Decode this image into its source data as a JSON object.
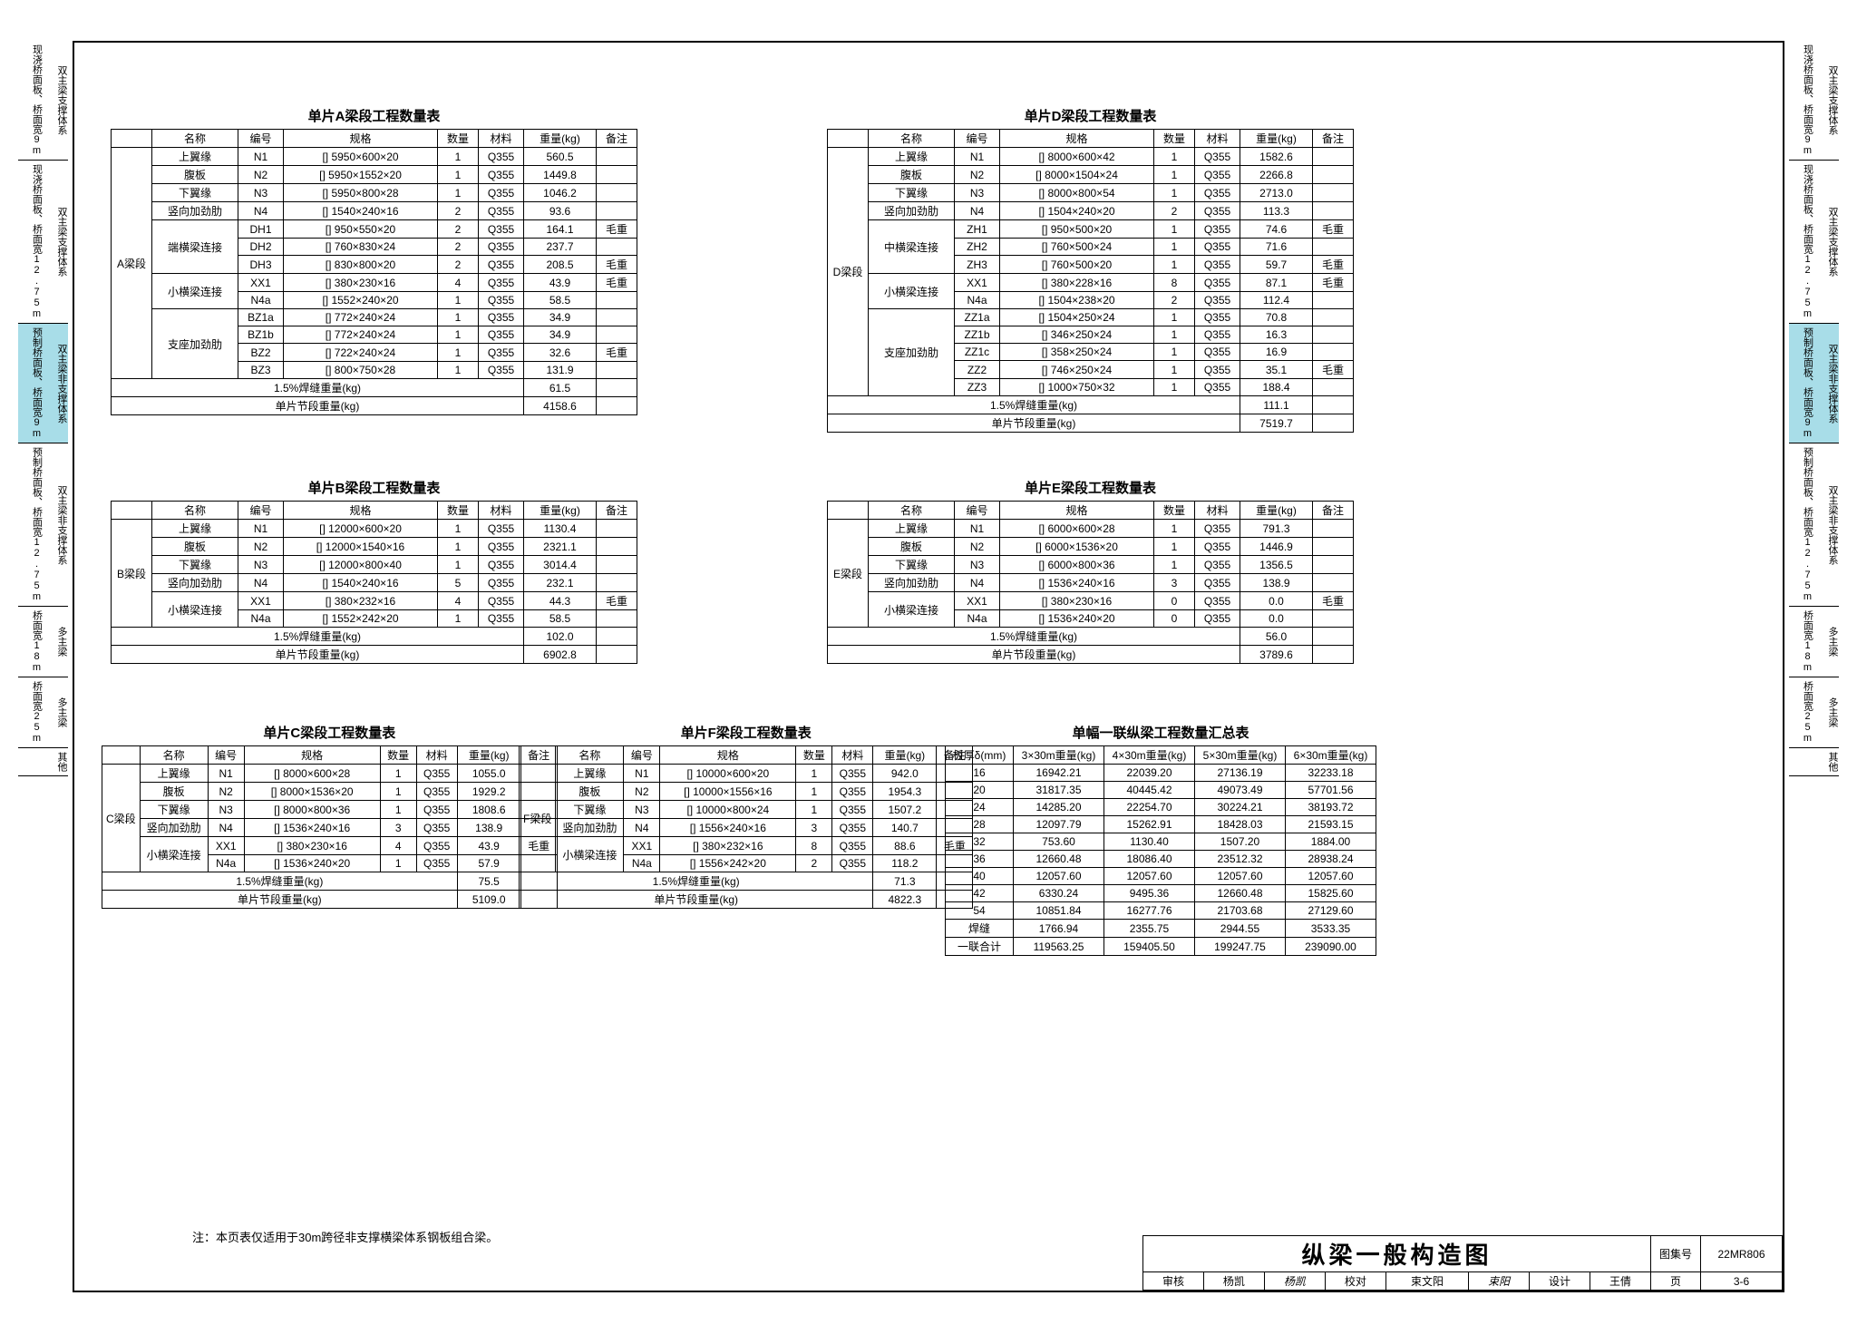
{
  "side_tabs": [
    {
      "main": "现浇桥面板、桥面宽9m",
      "sub": "双主梁支撑体系",
      "hl": false
    },
    {
      "main": "现浇桥面板、桥面宽12.75m",
      "sub": "双主梁支撑体系",
      "hl": false
    },
    {
      "main": "预制桥面板、桥面宽9m",
      "sub": "双主梁非支撑体系",
      "hl": true
    },
    {
      "main": "预制桥面板、桥面宽12.75m",
      "sub": "双主梁非支撑体系",
      "hl": false
    },
    {
      "main": "桥面宽18m",
      "sub": "多主梁",
      "hl": false
    },
    {
      "main": "桥面宽25m",
      "sub": "多主梁",
      "hl": false
    },
    {
      "main": "其他",
      "sub": "",
      "hl": false
    }
  ],
  "headers": [
    "名称",
    "编号",
    "规格",
    "数量",
    "材料",
    "重量(kg)",
    "备注"
  ],
  "tableA": {
    "title": "单片A梁段工程数量表",
    "segment": "A梁段",
    "groups": [
      {
        "name": "上翼缘",
        "rows": [
          [
            "N1",
            "[] 5950×600×20",
            "1",
            "Q355",
            "560.5",
            ""
          ]
        ]
      },
      {
        "name": "腹板",
        "rows": [
          [
            "N2",
            "[] 5950×1552×20",
            "1",
            "Q355",
            "1449.8",
            ""
          ]
        ]
      },
      {
        "name": "下翼缘",
        "rows": [
          [
            "N3",
            "[] 5950×800×28",
            "1",
            "Q355",
            "1046.2",
            ""
          ]
        ]
      },
      {
        "name": "竖向加劲肋",
        "rows": [
          [
            "N4",
            "[] 1540×240×16",
            "2",
            "Q355",
            "93.6",
            ""
          ]
        ]
      },
      {
        "name": "端横梁连接",
        "rows": [
          [
            "DH1",
            "[] 950×550×20",
            "2",
            "Q355",
            "164.1",
            "毛重"
          ],
          [
            "DH2",
            "[] 760×830×24",
            "2",
            "Q355",
            "237.7",
            ""
          ],
          [
            "DH3",
            "[] 830×800×20",
            "2",
            "Q355",
            "208.5",
            "毛重"
          ]
        ]
      },
      {
        "name": "小横梁连接",
        "rows": [
          [
            "XX1",
            "[] 380×230×16",
            "4",
            "Q355",
            "43.9",
            "毛重"
          ],
          [
            "N4a",
            "[] 1552×240×20",
            "1",
            "Q355",
            "58.5",
            ""
          ]
        ]
      },
      {
        "name": "支座加劲肋",
        "rows": [
          [
            "BZ1a",
            "[] 772×240×24",
            "1",
            "Q355",
            "34.9",
            ""
          ],
          [
            "BZ1b",
            "[] 772×240×24",
            "1",
            "Q355",
            "34.9",
            ""
          ],
          [
            "BZ2",
            "[] 722×240×24",
            "1",
            "Q355",
            "32.6",
            "毛重"
          ],
          [
            "BZ3",
            "[] 800×750×28",
            "1",
            "Q355",
            "131.9",
            ""
          ]
        ]
      }
    ],
    "weld": "61.5",
    "total": "4158.6"
  },
  "tableB": {
    "title": "单片B梁段工程数量表",
    "segment": "B梁段",
    "groups": [
      {
        "name": "上翼缘",
        "rows": [
          [
            "N1",
            "[] 12000×600×20",
            "1",
            "Q355",
            "1130.4",
            ""
          ]
        ]
      },
      {
        "name": "腹板",
        "rows": [
          [
            "N2",
            "[] 12000×1540×16",
            "1",
            "Q355",
            "2321.1",
            ""
          ]
        ]
      },
      {
        "name": "下翼缘",
        "rows": [
          [
            "N3",
            "[] 12000×800×40",
            "1",
            "Q355",
            "3014.4",
            ""
          ]
        ]
      },
      {
        "name": "竖向加劲肋",
        "rows": [
          [
            "N4",
            "[] 1540×240×16",
            "5",
            "Q355",
            "232.1",
            ""
          ]
        ]
      },
      {
        "name": "小横梁连接",
        "rows": [
          [
            "XX1",
            "[] 380×232×16",
            "4",
            "Q355",
            "44.3",
            "毛重"
          ],
          [
            "N4a",
            "[] 1552×242×20",
            "1",
            "Q355",
            "58.5",
            ""
          ]
        ]
      }
    ],
    "weld": "102.0",
    "total": "6902.8"
  },
  "tableC": {
    "title": "单片C梁段工程数量表",
    "segment": "C梁段",
    "groups": [
      {
        "name": "上翼缘",
        "rows": [
          [
            "N1",
            "[] 8000×600×28",
            "1",
            "Q355",
            "1055.0",
            ""
          ]
        ]
      },
      {
        "name": "腹板",
        "rows": [
          [
            "N2",
            "[] 8000×1536×20",
            "1",
            "Q355",
            "1929.2",
            ""
          ]
        ]
      },
      {
        "name": "下翼缘",
        "rows": [
          [
            "N3",
            "[] 8000×800×36",
            "1",
            "Q355",
            "1808.6",
            ""
          ]
        ]
      },
      {
        "name": "竖向加劲肋",
        "rows": [
          [
            "N4",
            "[] 1536×240×16",
            "3",
            "Q355",
            "138.9",
            ""
          ]
        ]
      },
      {
        "name": "小横梁连接",
        "rows": [
          [
            "XX1",
            "[] 380×230×16",
            "4",
            "Q355",
            "43.9",
            "毛重"
          ],
          [
            "N4a",
            "[] 1536×240×20",
            "1",
            "Q355",
            "57.9",
            ""
          ]
        ]
      }
    ],
    "weld": "75.5",
    "total": "5109.0"
  },
  "tableD": {
    "title": "单片D梁段工程数量表",
    "segment": "D梁段",
    "groups": [
      {
        "name": "上翼缘",
        "rows": [
          [
            "N1",
            "[] 8000×600×42",
            "1",
            "Q355",
            "1582.6",
            ""
          ]
        ]
      },
      {
        "name": "腹板",
        "rows": [
          [
            "N2",
            "[] 8000×1504×24",
            "1",
            "Q355",
            "2266.8",
            ""
          ]
        ]
      },
      {
        "name": "下翼缘",
        "rows": [
          [
            "N3",
            "[] 8000×800×54",
            "1",
            "Q355",
            "2713.0",
            ""
          ]
        ]
      },
      {
        "name": "竖向加劲肋",
        "rows": [
          [
            "N4",
            "[] 1504×240×20",
            "2",
            "Q355",
            "113.3",
            ""
          ]
        ]
      },
      {
        "name": "中横梁连接",
        "rows": [
          [
            "ZH1",
            "[] 950×500×20",
            "1",
            "Q355",
            "74.6",
            "毛重"
          ],
          [
            "ZH2",
            "[] 760×500×24",
            "1",
            "Q355",
            "71.6",
            ""
          ],
          [
            "ZH3",
            "[] 760×500×20",
            "1",
            "Q355",
            "59.7",
            "毛重"
          ]
        ]
      },
      {
        "name": "小横梁连接",
        "rows": [
          [
            "XX1",
            "[] 380×228×16",
            "8",
            "Q355",
            "87.1",
            "毛重"
          ],
          [
            "N4a",
            "[] 1504×238×20",
            "2",
            "Q355",
            "112.4",
            ""
          ]
        ]
      },
      {
        "name": "支座加劲肋",
        "rows": [
          [
            "ZZ1a",
            "[] 1504×250×24",
            "1",
            "Q355",
            "70.8",
            ""
          ],
          [
            "ZZ1b",
            "[] 346×250×24",
            "1",
            "Q355",
            "16.3",
            ""
          ],
          [
            "ZZ1c",
            "[] 358×250×24",
            "1",
            "Q355",
            "16.9",
            ""
          ],
          [
            "ZZ2",
            "[] 746×250×24",
            "1",
            "Q355",
            "35.1",
            "毛重"
          ],
          [
            "ZZ3",
            "[] 1000×750×32",
            "1",
            "Q355",
            "188.4",
            ""
          ]
        ]
      }
    ],
    "weld": "111.1",
    "total": "7519.7"
  },
  "tableE": {
    "title": "单片E梁段工程数量表",
    "segment": "E梁段",
    "groups": [
      {
        "name": "上翼缘",
        "rows": [
          [
            "N1",
            "[] 6000×600×28",
            "1",
            "Q355",
            "791.3",
            ""
          ]
        ]
      },
      {
        "name": "腹板",
        "rows": [
          [
            "N2",
            "[] 6000×1536×20",
            "1",
            "Q355",
            "1446.9",
            ""
          ]
        ]
      },
      {
        "name": "下翼缘",
        "rows": [
          [
            "N3",
            "[] 6000×800×36",
            "1",
            "Q355",
            "1356.5",
            ""
          ]
        ]
      },
      {
        "name": "竖向加劲肋",
        "rows": [
          [
            "N4",
            "[] 1536×240×16",
            "3",
            "Q355",
            "138.9",
            ""
          ]
        ]
      },
      {
        "name": "小横梁连接",
        "rows": [
          [
            "XX1",
            "[] 380×230×16",
            "0",
            "Q355",
            "0.0",
            "毛重"
          ],
          [
            "N4a",
            "[] 1536×240×20",
            "0",
            "Q355",
            "0.0",
            ""
          ]
        ]
      }
    ],
    "weld": "56.0",
    "total": "3789.6"
  },
  "tableF": {
    "title": "单片F梁段工程数量表",
    "segment": "F梁段",
    "groups": [
      {
        "name": "上翼缘",
        "rows": [
          [
            "N1",
            "[] 10000×600×20",
            "1",
            "Q355",
            "942.0",
            ""
          ]
        ]
      },
      {
        "name": "腹板",
        "rows": [
          [
            "N2",
            "[] 10000×1556×16",
            "1",
            "Q355",
            "1954.3",
            ""
          ]
        ]
      },
      {
        "name": "下翼缘",
        "rows": [
          [
            "N3",
            "[] 10000×800×24",
            "1",
            "Q355",
            "1507.2",
            ""
          ]
        ]
      },
      {
        "name": "竖向加劲肋",
        "rows": [
          [
            "N4",
            "[] 1556×240×16",
            "3",
            "Q355",
            "140.7",
            ""
          ]
        ]
      },
      {
        "name": "小横梁连接",
        "rows": [
          [
            "XX1",
            "[] 380×232×16",
            "8",
            "Q355",
            "88.6",
            "毛重"
          ],
          [
            "N4a",
            "[] 1556×242×20",
            "2",
            "Q355",
            "118.2",
            ""
          ]
        ]
      }
    ],
    "weld": "71.3",
    "total": "4822.3"
  },
  "summary": {
    "title": "单幅一联纵梁工程数量汇总表",
    "headers": [
      "板厚δ(mm)",
      "3×30m重量(kg)",
      "4×30m重量(kg)",
      "5×30m重量(kg)",
      "6×30m重量(kg)"
    ],
    "rows": [
      [
        "16",
        "16942.21",
        "22039.20",
        "27136.19",
        "32233.18"
      ],
      [
        "20",
        "31817.35",
        "40445.42",
        "49073.49",
        "57701.56"
      ],
      [
        "24",
        "14285.20",
        "22254.70",
        "30224.21",
        "38193.72"
      ],
      [
        "28",
        "12097.79",
        "15262.91",
        "18428.03",
        "21593.15"
      ],
      [
        "32",
        "753.60",
        "1130.40",
        "1507.20",
        "1884.00"
      ],
      [
        "36",
        "12660.48",
        "18086.40",
        "23512.32",
        "28938.24"
      ],
      [
        "40",
        "12057.60",
        "12057.60",
        "12057.60",
        "12057.60"
      ],
      [
        "42",
        "6330.24",
        "9495.36",
        "12660.48",
        "15825.60"
      ],
      [
        "54",
        "10851.84",
        "16277.76",
        "21703.68",
        "27129.60"
      ],
      [
        "焊缝",
        "1766.94",
        "2355.75",
        "2944.55",
        "3533.35"
      ],
      [
        "一联合计",
        "119563.25",
        "159405.50",
        "199247.75",
        "239090.00"
      ]
    ]
  },
  "note": "注：本页表仅适用于30m跨径非支撑横梁体系钢板组合梁。",
  "titleblock": {
    "title": "纵梁一般构造图",
    "tuji_label": "图集号",
    "tuji": "22MR806",
    "shenhe_label": "审核",
    "shenhe": "杨凯",
    "jiaodui_label": "校对",
    "jiaodui": "束文阳",
    "sheji_label": "设计",
    "sheji": "王倩",
    "page_label": "页",
    "page": "3-6"
  },
  "weld_label": "1.5%焊缝重量(kg)",
  "total_label": "单片节段重量(kg)"
}
